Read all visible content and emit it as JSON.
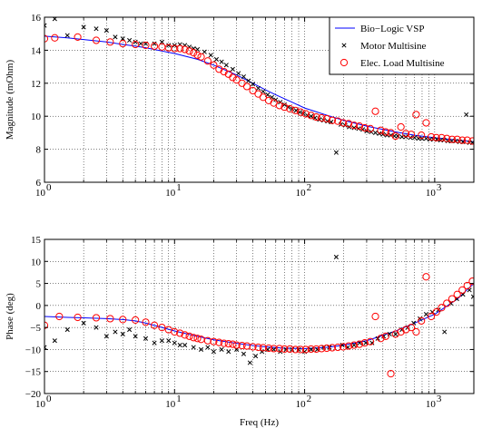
{
  "colors": {
    "vsp": "#0000ff",
    "motor": "#000000",
    "load": "#ff0000"
  },
  "chart_data": [
    {
      "type": "line",
      "ylabel": "Magnitude (mOhm)",
      "xlabel": "",
      "xscale": "log",
      "xlim": [
        1,
        2000
      ],
      "ylim": [
        6,
        16
      ],
      "grid": true,
      "legend_position": "top-right",
      "xticks": [
        1,
        10,
        100,
        1000
      ],
      "xtick_labels": [
        "10",
        "10",
        "10",
        "10"
      ],
      "xtick_exponents": [
        "0",
        "1",
        "2",
        "3"
      ],
      "yticks": [
        6,
        8,
        10,
        12,
        14,
        16
      ],
      "ytick_labels": [
        "6",
        "8",
        "10",
        "12",
        "14",
        "16"
      ],
      "series": [
        {
          "name": "Bio−Logic VSP",
          "style": "line",
          "x": [
            1,
            1.5,
            2,
            3,
            4,
            5,
            6,
            8,
            10,
            15,
            20,
            30,
            40,
            50,
            60,
            80,
            100,
            150,
            200,
            300,
            400,
            500,
            700,
            1000,
            1500,
            2000
          ],
          "y": [
            14.85,
            14.75,
            14.65,
            14.5,
            14.35,
            14.25,
            14.15,
            13.95,
            13.8,
            13.45,
            13.1,
            12.5,
            12.0,
            11.6,
            11.3,
            10.85,
            10.5,
            10.05,
            9.75,
            9.4,
            9.2,
            9.05,
            8.85,
            8.7,
            8.55,
            8.45
          ]
        },
        {
          "name": "Motor Multisine",
          "style": "x",
          "x": [
            1,
            1.2,
            1.5,
            2,
            2.5,
            3,
            3.5,
            4,
            4.5,
            5,
            5.5,
            6,
            7,
            8,
            9,
            10,
            11,
            12,
            13,
            14,
            15,
            17,
            19,
            21,
            23,
            25,
            28,
            31,
            34,
            37,
            40,
            44,
            48,
            52,
            56,
            60,
            65,
            70,
            75,
            80,
            86,
            92,
            98,
            105,
            112,
            120,
            130,
            140,
            150,
            160,
            175,
            190,
            205,
            220,
            240,
            260,
            280,
            300,
            325,
            350,
            375,
            400,
            430,
            460,
            490,
            520,
            560,
            600,
            650,
            700,
            750,
            800,
            860,
            920,
            980,
            1040,
            1110,
            1180,
            1260,
            1350,
            1450,
            1550,
            1650,
            1750,
            1850,
            1950
          ],
          "y": [
            15.5,
            15.9,
            14.9,
            15.4,
            15.3,
            15.2,
            14.8,
            14.7,
            14.6,
            14.5,
            14.4,
            14.4,
            14.4,
            14.5,
            14.3,
            14.3,
            14.35,
            14.3,
            14.2,
            14.1,
            14.05,
            13.9,
            13.7,
            13.45,
            13.3,
            13.1,
            12.85,
            12.6,
            12.4,
            12.15,
            11.95,
            11.7,
            11.5,
            11.3,
            11.15,
            11.0,
            10.85,
            10.7,
            10.55,
            10.45,
            10.35,
            10.25,
            10.15,
            10.05,
            10.0,
            9.9,
            9.8,
            9.75,
            9.7,
            9.65,
            7.8,
            9.5,
            9.45,
            9.35,
            9.3,
            9.25,
            9.2,
            9.1,
            9.05,
            9.0,
            8.95,
            8.9,
            8.85,
            8.85,
            8.8,
            8.8,
            8.75,
            8.75,
            8.7,
            8.7,
            8.65,
            8.65,
            8.65,
            8.6,
            8.6,
            8.6,
            8.55,
            8.55,
            8.5,
            8.5,
            8.5,
            8.45,
            8.45,
            10.1,
            8.4,
            8.4
          ]
        },
        {
          "name": "Elec. Load Multisine",
          "style": "o",
          "x": [
            1,
            1.2,
            1.8,
            2.5,
            3.2,
            4,
            5,
            6,
            7,
            8,
            9,
            10,
            11,
            12,
            13,
            14,
            15,
            16,
            18,
            20,
            22,
            24,
            26,
            28,
            30,
            33,
            36,
            40,
            44,
            48,
            53,
            58,
            64,
            70,
            77,
            85,
            93,
            102,
            112,
            123,
            135,
            148,
            163,
            180,
            198,
            218,
            240,
            264,
            290,
            320,
            350,
            385,
            420,
            460,
            500,
            550,
            600,
            660,
            720,
            790,
            860,
            940,
            1030,
            1130,
            1240,
            1360,
            1490,
            1630,
            1780,
            1950
          ],
          "y": [
            14.7,
            14.75,
            14.8,
            14.6,
            14.5,
            14.4,
            14.35,
            14.3,
            14.25,
            14.2,
            14.15,
            14.1,
            14.1,
            14.05,
            13.95,
            13.85,
            13.7,
            13.6,
            13.35,
            13.1,
            12.85,
            12.7,
            12.55,
            12.35,
            12.2,
            12.0,
            11.8,
            11.55,
            11.35,
            11.15,
            10.95,
            10.8,
            10.65,
            10.55,
            10.45,
            10.35,
            10.25,
            10.15,
            10.05,
            9.95,
            9.9,
            9.85,
            9.75,
            9.7,
            9.6,
            9.55,
            9.45,
            9.4,
            9.3,
            9.25,
            10.3,
            9.15,
            9.05,
            9.0,
            8.8,
            9.35,
            8.95,
            8.9,
            10.1,
            8.85,
            9.6,
            8.75,
            8.7,
            8.7,
            8.65,
            8.6,
            8.6,
            8.55,
            8.55,
            8.5
          ]
        }
      ]
    },
    {
      "type": "line",
      "ylabel": "Phase (deg)",
      "xlabel": "Freq (Hz)",
      "xscale": "log",
      "xlim": [
        1,
        2000
      ],
      "ylim": [
        -20,
        15
      ],
      "grid": true,
      "xticks": [
        1,
        10,
        100,
        1000
      ],
      "xtick_labels": [
        "10",
        "10",
        "10",
        "10"
      ],
      "xtick_exponents": [
        "0",
        "1",
        "2",
        "3"
      ],
      "yticks": [
        -20,
        -15,
        -10,
        -5,
        0,
        5,
        10,
        15
      ],
      "ytick_labels": [
        "−20",
        "−15",
        "−10",
        "−5",
        "0",
        "5",
        "10",
        "15"
      ],
      "series": [
        {
          "name": "Bio−Logic VSP",
          "style": "line",
          "x": [
            1,
            1.5,
            2,
            3,
            4,
            5,
            6,
            8,
            10,
            15,
            20,
            30,
            40,
            50,
            70,
            100,
            150,
            200,
            300,
            400,
            500,
            700,
            1000,
            1500,
            2000
          ],
          "y": [
            -2.5,
            -2.7,
            -2.8,
            -3.0,
            -3.2,
            -3.5,
            -4.0,
            -5.0,
            -5.8,
            -7.0,
            -7.8,
            -8.6,
            -9.1,
            -9.4,
            -9.7,
            -9.8,
            -9.5,
            -9.0,
            -8.0,
            -6.8,
            -5.8,
            -4.0,
            -2.0,
            1.5,
            5.0
          ]
        },
        {
          "name": "Motor Multisine",
          "style": "x",
          "x": [
            1,
            1.2,
            1.5,
            2,
            2.5,
            3,
            3.5,
            4,
            4.5,
            5,
            6,
            7,
            8,
            9,
            10,
            11,
            12,
            14,
            16,
            18,
            20,
            23,
            26,
            30,
            34,
            38,
            42,
            47,
            52,
            58,
            65,
            72,
            80,
            90,
            100,
            112,
            125,
            140,
            155,
            175,
            195,
            215,
            240,
            265,
            295,
            330,
            365,
            405,
            450,
            500,
            560,
            620,
            690,
            770,
            860,
            960,
            1070,
            1190,
            1330,
            1480,
            1650,
            1850,
            1980
          ],
          "y": [
            -9.5,
            -8.0,
            -5.5,
            -4.0,
            -5.0,
            -7.0,
            -6.0,
            -6.5,
            -5.5,
            -7.0,
            -7.5,
            -8.5,
            -8.0,
            -8.0,
            -8.5,
            -9.0,
            -9.0,
            -9.5,
            -10.0,
            -9.5,
            -10.5,
            -10.0,
            -10.5,
            -10.0,
            -11.0,
            -13.0,
            -11.5,
            -10.5,
            -10.0,
            -10.0,
            -10.5,
            -10.0,
            -10.0,
            -10.0,
            -10.5,
            -10.0,
            -10.0,
            -9.5,
            -9.5,
            11.0,
            -9.0,
            -9.5,
            -9.0,
            -8.5,
            -8.5,
            -8.5,
            -7.5,
            -7.0,
            -6.5,
            -6.5,
            -5.5,
            -5.0,
            -4.0,
            -3.0,
            -2.0,
            -1.5,
            -1.0,
            -6.0,
            0.5,
            1.5,
            2.5,
            3.5,
            2.0
          ]
        },
        {
          "name": "Elec. Load Multisine",
          "style": "o",
          "x": [
            1,
            1.3,
            1.8,
            2.5,
            3.2,
            4,
            5,
            6,
            7,
            8,
            9,
            10,
            11,
            12,
            13,
            14,
            15,
            16,
            18,
            20,
            22,
            24,
            26,
            28,
            30,
            33,
            36,
            40,
            44,
            48,
            53,
            58,
            64,
            70,
            77,
            85,
            93,
            102,
            112,
            123,
            135,
            148,
            163,
            180,
            198,
            218,
            240,
            264,
            290,
            320,
            350,
            385,
            420,
            460,
            500,
            550,
            600,
            660,
            720,
            790,
            860,
            940,
            1030,
            1130,
            1240,
            1360,
            1490,
            1630,
            1780,
            1950
          ],
          "y": [
            -4.5,
            -2.5,
            -2.7,
            -2.8,
            -3.0,
            -3.2,
            -3.3,
            -3.8,
            -4.5,
            -5.0,
            -5.5,
            -6.0,
            -6.3,
            -6.7,
            -7.0,
            -7.3,
            -7.5,
            -7.7,
            -8.0,
            -8.2,
            -8.4,
            -8.6,
            -8.7,
            -8.8,
            -9.0,
            -9.1,
            -9.2,
            -9.4,
            -9.5,
            -9.6,
            -9.7,
            -9.8,
            -9.8,
            -9.9,
            -9.9,
            -10.0,
            -10.0,
            -10.0,
            -9.9,
            -9.9,
            -9.8,
            -9.7,
            -9.6,
            -9.5,
            -9.4,
            -9.2,
            -9.0,
            -8.8,
            -8.5,
            -8.2,
            -2.5,
            -7.5,
            -7.0,
            -15.5,
            -6.5,
            -6.0,
            -5.5,
            -5.0,
            -6.0,
            -3.5,
            6.5,
            -2.5,
            -1.5,
            -0.5,
            0.5,
            1.5,
            2.5,
            3.5,
            4.5,
            5.5
          ]
        }
      ]
    }
  ]
}
